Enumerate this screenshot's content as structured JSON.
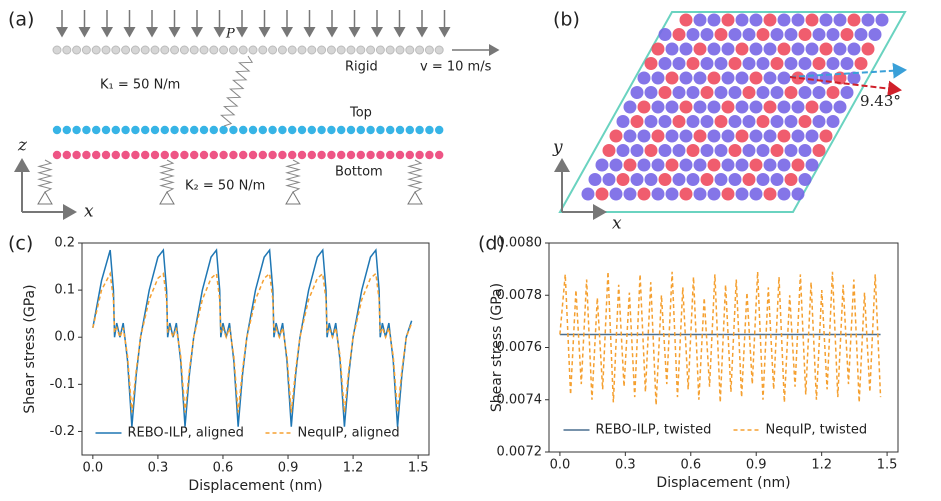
{
  "schematic": {
    "panel_a": "(a)",
    "panel_b": "(b)",
    "load_point": "P",
    "rigid": "Rigid",
    "velocity": "v = 10 m/s",
    "k1": "K₁ = 50 N/m",
    "top": "Top",
    "bottom": "Bottom",
    "k2": "K₂ = 50 N/m",
    "axis_z": "z",
    "axis_x_a": "x",
    "axis_y": "y",
    "axis_x_b": "x",
    "twist_angle": "9.43°"
  },
  "chart_data": [
    {
      "type": "line",
      "panel": "(c)",
      "x_label": "Displacement (nm)",
      "y_label": "Shear stress (GPa)",
      "xlim": [
        -0.05,
        1.55
      ],
      "ylim": [
        -0.25,
        0.2
      ],
      "xticks": [
        {
          "value": 0,
          "label": "0.0"
        },
        0.3,
        0.6,
        0.9,
        1.2,
        1.5
      ],
      "yticks": [
        -0.2,
        -0.1,
        {
          "value": 0,
          "label": "0.0"
        },
        0.1,
        0.2
      ],
      "legend": "lower center",
      "x": [
        0,
        0.04,
        0.08,
        0.095,
        0.1,
        0.11,
        0.125,
        0.14,
        0.16,
        0.18,
        0.2,
        0.22,
        0.26,
        0.3,
        0.325,
        0.34,
        0.345,
        0.355,
        0.37,
        0.385,
        0.405,
        0.425,
        0.445,
        0.465,
        0.505,
        0.545,
        0.57,
        0.585,
        0.59,
        0.6,
        0.615,
        0.63,
        0.65,
        0.67,
        0.69,
        0.71,
        0.75,
        0.79,
        0.815,
        0.83,
        0.835,
        0.845,
        0.86,
        0.875,
        0.895,
        0.915,
        0.935,
        0.955,
        0.995,
        1.035,
        1.06,
        1.075,
        1.08,
        1.09,
        1.105,
        1.12,
        1.14,
        1.16,
        1.18,
        1.2,
        1.24,
        1.28,
        1.305,
        1.32,
        1.325,
        1.335,
        1.35,
        1.365,
        1.385,
        1.405,
        1.425,
        1.445,
        1.47
      ],
      "series": [
        {
          "name": "REBO-ILP, aligned",
          "color": "#1f77b4",
          "dash": false,
          "values": [
            0.02,
            0.12,
            0.185,
            0.1,
            0.0,
            0.03,
            0.0,
            0.03,
            -0.05,
            -0.19,
            -0.08,
            0.0,
            0.1,
            0.17,
            0.185,
            0.1,
            0.0,
            0.03,
            0.0,
            0.03,
            -0.05,
            -0.19,
            -0.08,
            0.0,
            0.1,
            0.17,
            0.185,
            0.1,
            0.0,
            0.03,
            0.0,
            0.03,
            -0.05,
            -0.19,
            -0.08,
            0.0,
            0.1,
            0.17,
            0.185,
            0.1,
            0.0,
            0.03,
            0.0,
            0.03,
            -0.05,
            -0.19,
            -0.08,
            0.0,
            0.1,
            0.17,
            0.185,
            0.1,
            0.0,
            0.03,
            0.0,
            0.03,
            -0.05,
            -0.19,
            -0.08,
            0.0,
            0.1,
            0.17,
            0.185,
            0.1,
            0.0,
            0.03,
            0.0,
            0.03,
            -0.05,
            -0.19,
            -0.08,
            0.0,
            0.035
          ]
        },
        {
          "name": "NequIP, aligned",
          "color": "#f5a030",
          "dash": true,
          "values": [
            0.02,
            0.1,
            0.135,
            0.08,
            0.01,
            0.02,
            0.0,
            0.02,
            -0.04,
            -0.16,
            -0.07,
            0.0,
            0.08,
            0.125,
            0.135,
            0.08,
            0.01,
            0.02,
            0.0,
            0.02,
            -0.04,
            -0.16,
            -0.07,
            0.0,
            0.08,
            0.125,
            0.135,
            0.08,
            0.01,
            0.02,
            0.0,
            0.02,
            -0.04,
            -0.16,
            -0.07,
            0.0,
            0.08,
            0.125,
            0.135,
            0.08,
            0.01,
            0.02,
            0.0,
            0.02,
            -0.04,
            -0.16,
            -0.07,
            0.0,
            0.08,
            0.125,
            0.135,
            0.08,
            0.01,
            0.02,
            0.0,
            0.02,
            -0.04,
            -0.16,
            -0.07,
            0.0,
            0.08,
            0.125,
            0.135,
            0.08,
            0.01,
            0.02,
            0.0,
            0.02,
            -0.04,
            -0.16,
            -0.07,
            0.0,
            0.03
          ]
        }
      ]
    },
    {
      "type": "line",
      "panel": "(d)",
      "x_label": "Displacement (nm)",
      "y_label": "Shear stress (GPa)",
      "xlim": [
        -0.05,
        1.55
      ],
      "ylim": [
        0.0072,
        0.008
      ],
      "xticks": [
        {
          "value": 0,
          "label": "0.0"
        },
        0.3,
        0.6,
        0.9,
        1.2,
        1.5
      ],
      "yticks": [
        0.0072,
        0.0074,
        0.0076,
        0.0078,
        {
          "value": 0.008,
          "label": "0.0080"
        }
      ],
      "legend": "lower center",
      "series": [
        {
          "name": "REBO-ILP, twisted",
          "color": "#4a6f8f",
          "dash": false,
          "x": [
            0,
            1.47
          ],
          "values": [
            0.00765,
            0.00765
          ]
        },
        {
          "name": "NequIP, twisted",
          "color": "#f5a030",
          "dash": true,
          "x": [
            0,
            0.0245,
            0.049,
            0.0735,
            0.098,
            0.1225,
            0.147,
            0.1715,
            0.196,
            0.2205,
            0.245,
            0.2695,
            0.294,
            0.3185,
            0.343,
            0.3675,
            0.392,
            0.4165,
            0.441,
            0.4655,
            0.49,
            0.5145,
            0.539,
            0.5635,
            0.588,
            0.6125,
            0.637,
            0.6615,
            0.686,
            0.7105,
            0.735,
            0.7595,
            0.784,
            0.8085,
            0.833,
            0.8575,
            0.882,
            0.9065,
            0.931,
            0.9555,
            0.98,
            1.0045,
            1.029,
            1.0535,
            1.078,
            1.1025,
            1.127,
            1.1515,
            1.176,
            1.2005,
            1.225,
            1.2495,
            1.274,
            1.2985,
            1.323,
            1.3475,
            1.372,
            1.3965,
            1.421,
            1.4455,
            1.47
          ],
          "values": [
            0.00765,
            0.00788,
            0.00742,
            0.00782,
            0.00746,
            0.00786,
            0.0074,
            0.00779,
            0.00744,
            0.00789,
            0.00739,
            0.00784,
            0.00745,
            0.00781,
            0.00741,
            0.00788,
            0.00743,
            0.00785,
            0.00738,
            0.0078,
            0.00746,
            0.00789,
            0.00741,
            0.00783,
            0.00744,
            0.00787,
            0.0074,
            0.00779,
            0.00745,
            0.00788,
            0.00739,
            0.00784,
            0.00743,
            0.00786,
            0.00741,
            0.00781,
            0.00746,
            0.00789,
            0.0074,
            0.00783,
            0.00744,
            0.00787,
            0.00739,
            0.0078,
            0.00745,
            0.00788,
            0.00742,
            0.00785,
            0.0074,
            0.00782,
            0.00744,
            0.00789,
            0.00741,
            0.00784,
            0.00746,
            0.00786,
            0.00739,
            0.00781,
            0.00743,
            0.00788,
            0.00741
          ]
        }
      ]
    }
  ]
}
